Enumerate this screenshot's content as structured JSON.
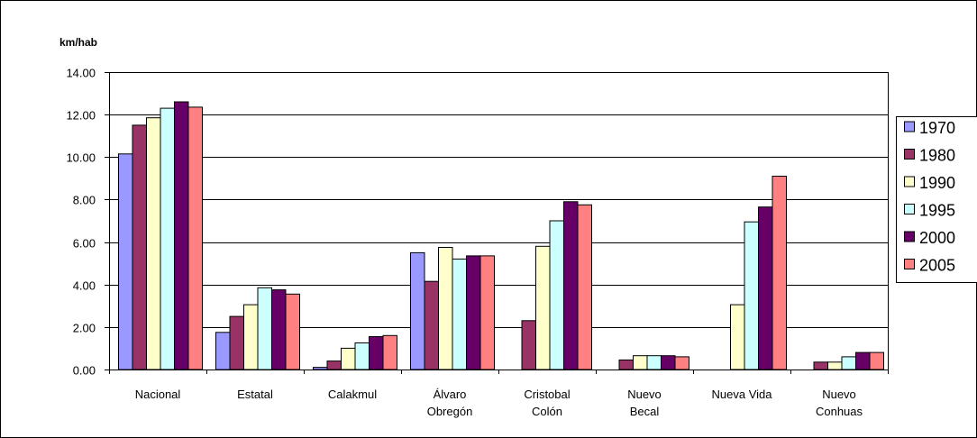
{
  "chart_data": {
    "type": "bar",
    "title": "",
    "xlabel": "",
    "ylabel": "km/hab",
    "ylim": [
      0,
      14
    ],
    "yticks": [
      "0.00",
      "2.00",
      "4.00",
      "6.00",
      "8.00",
      "10.00",
      "12.00",
      "14.00"
    ],
    "grid": true,
    "legend_position": "right",
    "categories": [
      [
        "Nacional"
      ],
      [
        "Estatal"
      ],
      [
        "Calakmul"
      ],
      [
        "Álvaro",
        "Obregón"
      ],
      [
        "Cristobal",
        "Colón"
      ],
      [
        "Nuevo",
        "Becal"
      ],
      [
        "Nueva Vida"
      ],
      [
        "Nuevo",
        "Conhuas"
      ]
    ],
    "series": [
      {
        "name": "1970",
        "color": "#9999ff",
        "values": [
          10.15,
          1.75,
          0.1,
          5.5,
          0,
          0,
          0,
          0
        ]
      },
      {
        "name": "1980",
        "color": "#993366",
        "values": [
          11.5,
          2.5,
          0.4,
          4.15,
          2.3,
          0.45,
          0,
          0.35
        ]
      },
      {
        "name": "1990",
        "color": "#ffffcc",
        "values": [
          11.85,
          3.05,
          1.0,
          5.75,
          5.8,
          0.65,
          3.05,
          0.35
        ]
      },
      {
        "name": "1995",
        "color": "#ccffff",
        "values": [
          12.3,
          3.85,
          1.25,
          5.2,
          7.0,
          0.65,
          6.95,
          0.6
        ]
      },
      {
        "name": "2000",
        "color": "#660066",
        "values": [
          12.6,
          3.75,
          1.55,
          5.35,
          7.9,
          0.65,
          7.65,
          0.8
        ]
      },
      {
        "name": "2005",
        "color": "#ff8080",
        "values": [
          12.35,
          3.55,
          1.6,
          5.35,
          7.75,
          0.6,
          9.1,
          0.8
        ]
      }
    ]
  }
}
